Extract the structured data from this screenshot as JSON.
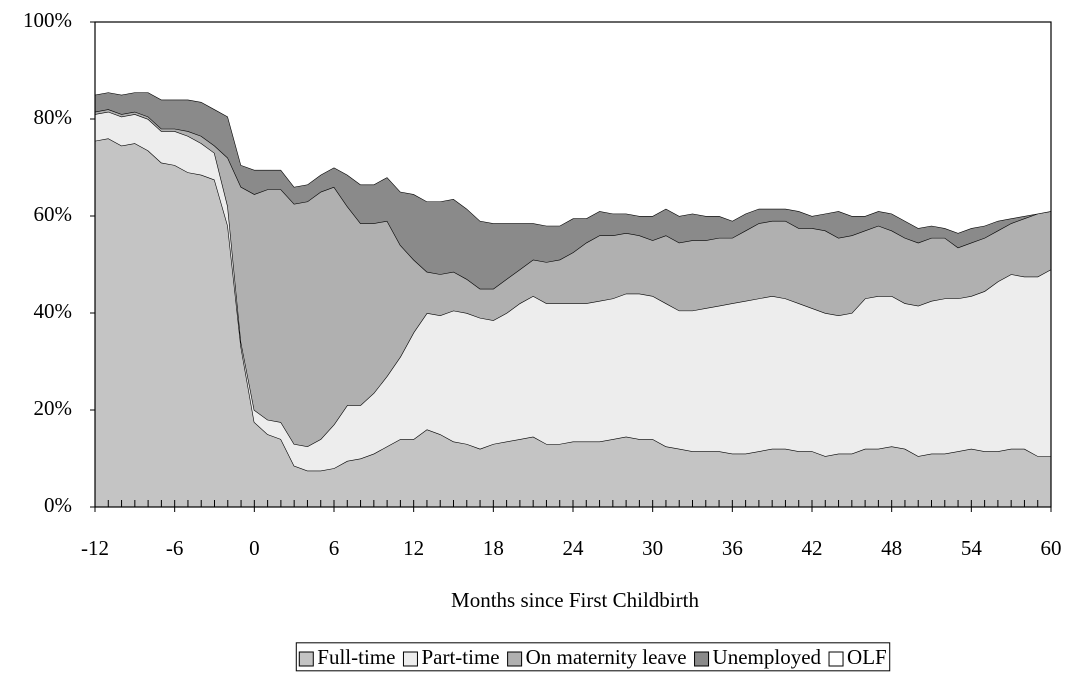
{
  "chart_data": {
    "type": "stacked-area",
    "x_label": "Months since First Childbirth",
    "x": [
      -12,
      -11,
      -10,
      -9,
      -8,
      -7,
      -6,
      -5,
      -4,
      -3,
      -2,
      -1,
      0,
      1,
      2,
      3,
      4,
      5,
      6,
      7,
      8,
      9,
      10,
      11,
      12,
      13,
      14,
      15,
      16,
      17,
      18,
      19,
      20,
      21,
      22,
      23,
      24,
      25,
      26,
      27,
      28,
      29,
      30,
      31,
      32,
      33,
      34,
      35,
      36,
      37,
      38,
      39,
      40,
      41,
      42,
      43,
      44,
      45,
      46,
      47,
      48,
      49,
      50,
      51,
      52,
      53,
      54,
      55,
      56,
      57,
      58,
      59,
      60
    ],
    "xlim": [
      -12,
      60
    ],
    "xticks": [
      -12,
      -6,
      0,
      6,
      12,
      18,
      24,
      30,
      36,
      42,
      48,
      54,
      60
    ],
    "ylim": [
      0,
      100
    ],
    "yticks": [
      {
        "value": 0,
        "label": "0%"
      },
      {
        "value": 20,
        "label": "20%"
      },
      {
        "value": 40,
        "label": "40%"
      },
      {
        "value": 60,
        "label": "60%"
      },
      {
        "value": 80,
        "label": "80%"
      },
      {
        "value": 100,
        "label": "100%"
      }
    ],
    "grid": false,
    "legend": "bottom",
    "series": [
      {
        "name": "Full-time",
        "color": "#c4c4c4",
        "values": [
          75.5,
          76,
          74.5,
          75,
          73.5,
          71,
          70.5,
          69,
          68.5,
          67.5,
          58,
          33,
          17.5,
          15,
          14,
          8.5,
          7.5,
          7.5,
          8,
          9.5,
          10,
          11,
          12.5,
          14,
          14,
          16,
          15,
          13.5,
          13,
          12,
          13,
          13.5,
          14,
          14.5,
          13,
          13,
          13.5,
          13.5,
          13.5,
          14,
          14.5,
          14,
          14,
          12.5,
          12,
          11.5,
          11.5,
          11.5,
          11,
          11,
          11.5,
          12,
          12,
          11.5,
          11.5,
          10.5,
          11,
          11,
          12,
          12,
          12.5,
          12,
          10.5,
          11,
          11,
          11.5,
          12,
          11.5,
          11.5,
          12,
          12,
          10.5,
          10.5
        ]
      },
      {
        "name": "Part-time",
        "color": "#ededed",
        "values": [
          5.5,
          5.5,
          6,
          6,
          6.5,
          6.5,
          7,
          7.5,
          6.5,
          5.5,
          4,
          1,
          2.5,
          3,
          3.5,
          4.5,
          5,
          6.5,
          9,
          11.5,
          11,
          12.5,
          14.5,
          17,
          22,
          24,
          24.5,
          27,
          27,
          27,
          25.5,
          26.5,
          28,
          29,
          29,
          29,
          28.5,
          28.5,
          29,
          29,
          29.5,
          30,
          29.5,
          29.5,
          28.5,
          29,
          29.5,
          30,
          31,
          31.5,
          31.5,
          31.5,
          31,
          30.5,
          29.5,
          29.5,
          28.5,
          29,
          31,
          31.5,
          31,
          30,
          31,
          31.5,
          32,
          31.5,
          31.5,
          33,
          35,
          36,
          35.5,
          37,
          38.5
        ]
      },
      {
        "name": "On maternity leave",
        "color": "#b0b0b0",
        "values": [
          0.5,
          0.5,
          0.5,
          0.5,
          0.5,
          0.5,
          0.5,
          1,
          1.5,
          1.5,
          10,
          32,
          44.5,
          47.5,
          48,
          49.5,
          50.5,
          51,
          49,
          41,
          37.5,
          35,
          32,
          23,
          15,
          8.5,
          8.5,
          8,
          7,
          6,
          6.5,
          7,
          7,
          7.5,
          8.5,
          9,
          10.5,
          12.5,
          13.5,
          13,
          12.5,
          12,
          11.5,
          14,
          14,
          14.5,
          14,
          14,
          13.5,
          14.5,
          15.5,
          15.5,
          16,
          15.5,
          16.5,
          17,
          16,
          16,
          14,
          14.5,
          13.5,
          13.5,
          13,
          13,
          12.5,
          10.5,
          11,
          11,
          10.5,
          10.5,
          12,
          13,
          12
        ]
      },
      {
        "name": "Unemployed",
        "color": "#8a8a8a",
        "values": [
          3.5,
          3.5,
          4,
          4,
          5,
          6,
          6,
          6.5,
          7,
          7.5,
          8.5,
          4.5,
          5,
          4,
          4,
          3.5,
          3.5,
          3.5,
          4,
          6.5,
          8,
          8,
          9,
          11,
          13.5,
          14.5,
          15,
          15,
          14.5,
          14,
          13.5,
          11.5,
          9.5,
          7.5,
          7.5,
          7,
          7,
          5,
          5,
          4.5,
          4,
          4,
          5,
          5.5,
          5.5,
          5.5,
          5,
          4.5,
          3.5,
          3.5,
          3,
          2.5,
          2.5,
          3.5,
          2.5,
          3.5,
          5.5,
          4,
          3,
          3,
          3.5,
          3.5,
          3,
          2.5,
          2,
          3,
          3,
          2.5,
          2,
          1,
          0.5,
          0,
          0
        ]
      },
      {
        "name": "OLF",
        "color": "#ffffff",
        "values": [
          15,
          14.5,
          15,
          14.5,
          14.5,
          16,
          16,
          16,
          16.5,
          18,
          19.5,
          29.5,
          30.5,
          30.5,
          30.5,
          34,
          33.5,
          31.5,
          30,
          31.5,
          33.5,
          33.5,
          32,
          35,
          35.5,
          37,
          37,
          36.5,
          38.5,
          41,
          41.5,
          41.5,
          41.5,
          41.5,
          42,
          42,
          40.5,
          40.5,
          39,
          39.5,
          39.5,
          40,
          40,
          38.5,
          40,
          39.5,
          40,
          40,
          41,
          39.5,
          38.5,
          38.5,
          38.5,
          39,
          40,
          39.5,
          39,
          40,
          40,
          39,
          39.5,
          41,
          42.5,
          42,
          42.5,
          43.5,
          42.5,
          42,
          41,
          40.5,
          40,
          39.5,
          39
        ]
      }
    ]
  }
}
